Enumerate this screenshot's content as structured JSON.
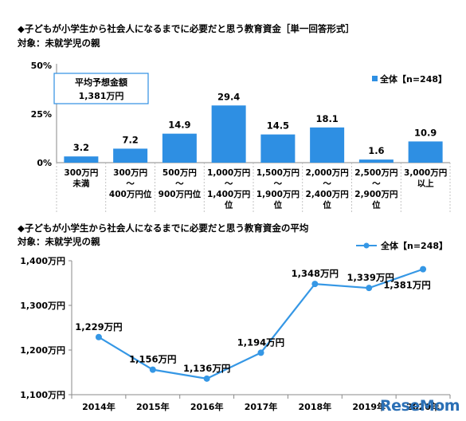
{
  "colors": {
    "bar": "#2e8fe3",
    "line": "#3597e5",
    "axis": "#8a8a8a",
    "box_border": "#2e8fe3",
    "text": "#111111"
  },
  "watermark": "ReseMom",
  "chart_data": [
    {
      "type": "bar",
      "title": "◆子どもが小学生から社会人になるまでに必要だと思う教育資金［単一回答形式］",
      "subtitle": "対象：未就学児の親",
      "ylim": [
        0,
        50
      ],
      "yticks": [
        "0%",
        "25%",
        "50%"
      ],
      "ytick_values": [
        0,
        25,
        50
      ],
      "categories": [
        [
          "300万円",
          "未満"
        ],
        [
          "300万円",
          "～",
          "400万円位"
        ],
        [
          "500万円",
          "～",
          "900万円位"
        ],
        [
          "1,000万円",
          "～",
          "1,400万円",
          "位"
        ],
        [
          "1,500万円",
          "～",
          "1,900万円",
          "位"
        ],
        [
          "2,000万円",
          "～",
          "2,400万円",
          "位"
        ],
        [
          "2,500万円",
          "～",
          "2,900万円",
          "位"
        ],
        [
          "3,000万円",
          "以上"
        ]
      ],
      "series": [
        {
          "name": "全体【n=248】",
          "values": [
            3.2,
            7.2,
            14.9,
            29.4,
            14.5,
            18.1,
            1.6,
            10.9
          ]
        }
      ],
      "value_labels": [
        "3.2",
        "7.2",
        "14.9",
        "29.4",
        "14.5",
        "18.1",
        "1.6",
        "10.9"
      ],
      "annotation": {
        "line1": "平均予想金額",
        "line2": "1,381万円"
      },
      "legend_placement": "top-right"
    },
    {
      "type": "line",
      "title": "◆子どもが小学生から社会人になるまでに必要だと思う教育資金の平均",
      "subtitle": "対象：未就学児の親",
      "ylim": [
        1100,
        1400
      ],
      "yticks": [
        "1,100万円",
        "1,200万円",
        "1,300万円",
        "1,400万円"
      ],
      "ytick_values": [
        1100,
        1200,
        1300,
        1400
      ],
      "categories": [
        "2014年",
        "2015年",
        "2016年",
        "2017年",
        "2018年",
        "2019年",
        "2020年"
      ],
      "series": [
        {
          "name": "全体【n=248】",
          "values": [
            1229,
            1156,
            1136,
            1194,
            1348,
            1339,
            1381
          ]
        }
      ],
      "value_labels": [
        "1,229万円",
        "1,156万円",
        "1,136万円",
        "1,194万円",
        "1,348万円",
        "1,339万円",
        "1,381万円"
      ],
      "legend_placement": "top-right"
    }
  ]
}
